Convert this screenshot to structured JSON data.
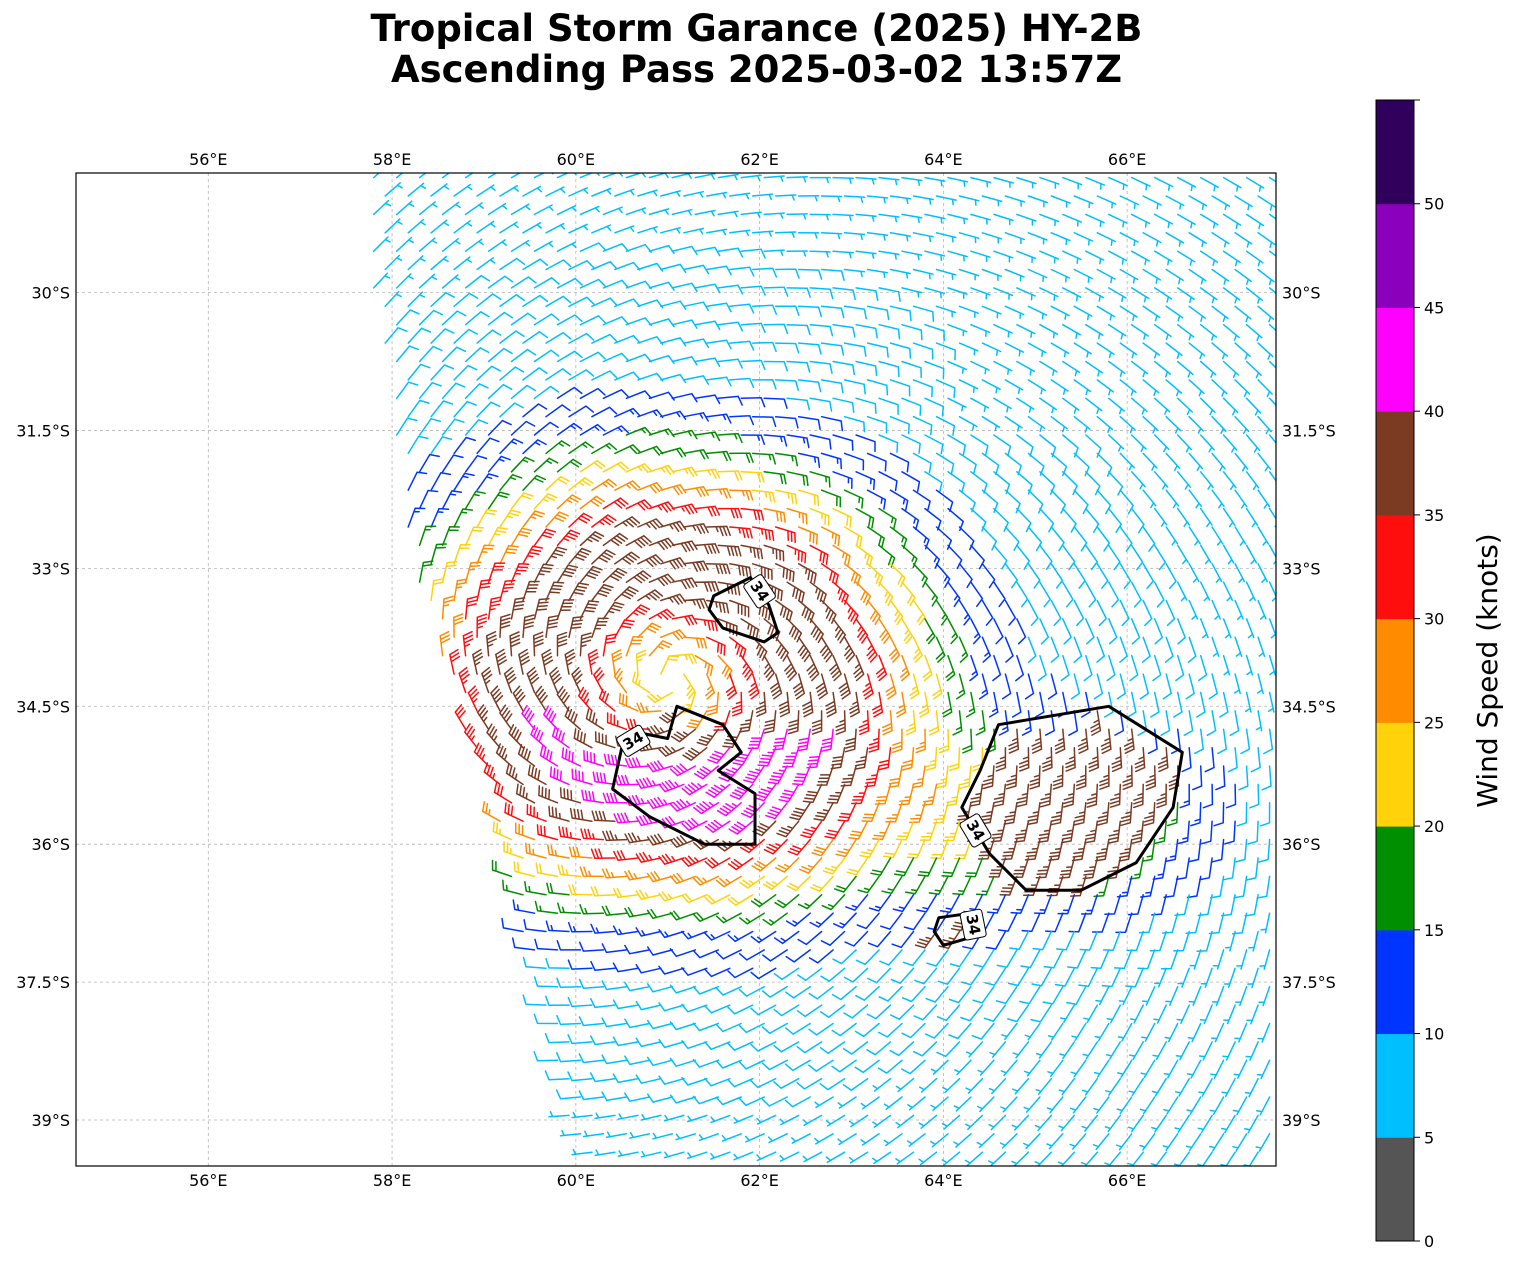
{
  "title_line1": "Tropical Storm Garance (2025) HY-2B",
  "title_line2": "Ascending Pass 2025-03-02 13:57Z",
  "map": {
    "lon_range": [
      54.56,
      67.62
    ],
    "lat_range": [
      -39.5,
      -28.7
    ],
    "lon_ticks": [
      56,
      58,
      60,
      62,
      64,
      66
    ],
    "lon_tick_labels": [
      "56°E",
      "58°E",
      "60°E",
      "62°E",
      "64°E",
      "66°E"
    ],
    "lat_ticks": [
      -30,
      -31.5,
      -33,
      -34.5,
      -36,
      -37.5,
      -39
    ],
    "lat_tick_labels": [
      "30°S",
      "31.5°S",
      "33°S",
      "34.5°S",
      "36°S",
      "37.5°S",
      "39°S"
    ],
    "grid": true,
    "storm_center": [
      61.0,
      -34.2
    ],
    "swath_polygon": [
      [
        57.7,
        -28.7
      ],
      [
        67.62,
        -28.7
      ],
      [
        67.62,
        -39.5
      ],
      [
        60.0,
        -39.5
      ],
      [
        59.2,
        -36.0
      ],
      [
        58.2,
        -33.0
      ],
      [
        57.8,
        -30.0
      ]
    ],
    "contour_34kt": {
      "value": 34,
      "labels": [
        "34",
        "34",
        "34",
        "34"
      ],
      "polygons": [
        [
          [
            61.5,
            -33.3
          ],
          [
            61.9,
            -33.1
          ],
          [
            62.1,
            -33.4
          ],
          [
            62.2,
            -33.7
          ],
          [
            62.05,
            -33.8
          ],
          [
            61.6,
            -33.65
          ],
          [
            61.45,
            -33.45
          ]
        ],
        [
          [
            61.1,
            -34.5
          ],
          [
            61.6,
            -34.7
          ],
          [
            61.8,
            -35.0
          ],
          [
            61.55,
            -35.2
          ],
          [
            61.95,
            -35.45
          ],
          [
            61.95,
            -36.0
          ],
          [
            61.4,
            -36.0
          ],
          [
            60.8,
            -35.7
          ],
          [
            60.4,
            -35.4
          ],
          [
            60.5,
            -34.95
          ],
          [
            60.75,
            -34.8
          ],
          [
            61.0,
            -34.85
          ]
        ],
        [
          [
            64.6,
            -34.7
          ],
          [
            65.8,
            -34.5
          ],
          [
            66.6,
            -35.0
          ],
          [
            66.5,
            -35.6
          ],
          [
            66.1,
            -36.2
          ],
          [
            65.5,
            -36.5
          ],
          [
            64.9,
            -36.5
          ],
          [
            64.5,
            -36.1
          ],
          [
            64.2,
            -35.6
          ],
          [
            64.4,
            -35.2
          ]
        ],
        [
          [
            63.95,
            -36.8
          ],
          [
            64.3,
            -36.75
          ],
          [
            64.35,
            -37.0
          ],
          [
            64.0,
            -37.1
          ],
          [
            63.9,
            -36.95
          ]
        ]
      ]
    }
  },
  "colorbar": {
    "label": "Wind Speed (knots)",
    "bounds": [
      0,
      5,
      10,
      15,
      20,
      25,
      30,
      35,
      40,
      45,
      50,
      55
    ],
    "tick_values": [
      0,
      5,
      10,
      15,
      20,
      25,
      30,
      35,
      40,
      45,
      50
    ],
    "tick_labels": [
      "0",
      "5",
      "10",
      "15",
      "20",
      "25",
      "30",
      "35",
      "40",
      "45",
      "50"
    ],
    "colors": [
      "#555555",
      "#00bfff",
      "#0035ff",
      "#008f00",
      "#ffd20a",
      "#ff8c00",
      "#ff0e0e",
      "#7b3a22",
      "#ff00ff",
      "#8a00bb",
      "#2f005c"
    ]
  }
}
